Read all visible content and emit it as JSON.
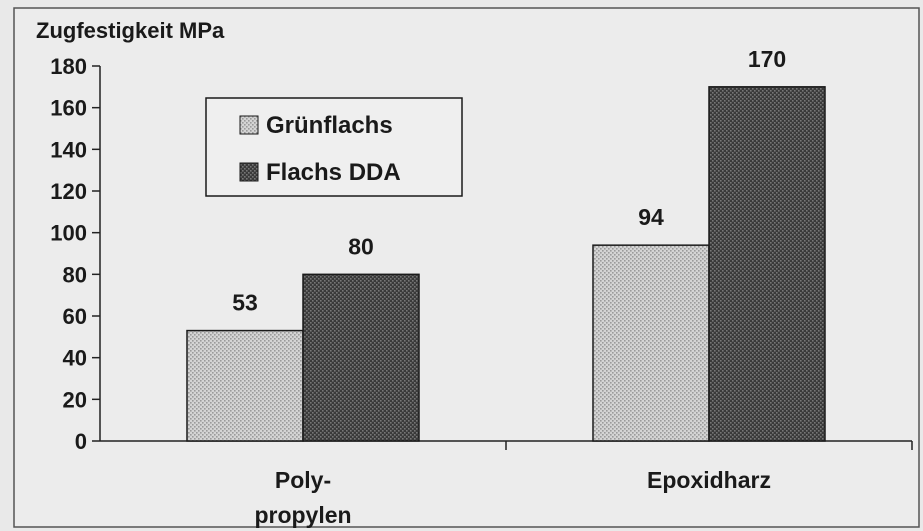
{
  "chart_data": {
    "type": "bar",
    "ylabel": "Zugfestigkeit MPa",
    "ylim": [
      0,
      180
    ],
    "yticks": [
      0,
      20,
      40,
      60,
      80,
      100,
      120,
      140,
      160,
      180
    ],
    "categories": [
      {
        "lines": [
          "Poly-",
          "propylen"
        ]
      },
      {
        "lines": [
          "Epoxidharz"
        ]
      }
    ],
    "series": [
      {
        "name": "Grünflachs",
        "values": [
          53,
          94
        ],
        "color": "#d4d4d4",
        "dot": "#9a9a9a"
      },
      {
        "name": "Flachs DDA",
        "values": [
          80,
          170
        ],
        "color": "#3a3a3a",
        "dot": "#777777"
      }
    ],
    "data_labels": [
      [
        "53",
        "94"
      ],
      [
        "80",
        "170"
      ]
    ],
    "legend_position": "top-left",
    "grid": false
  }
}
